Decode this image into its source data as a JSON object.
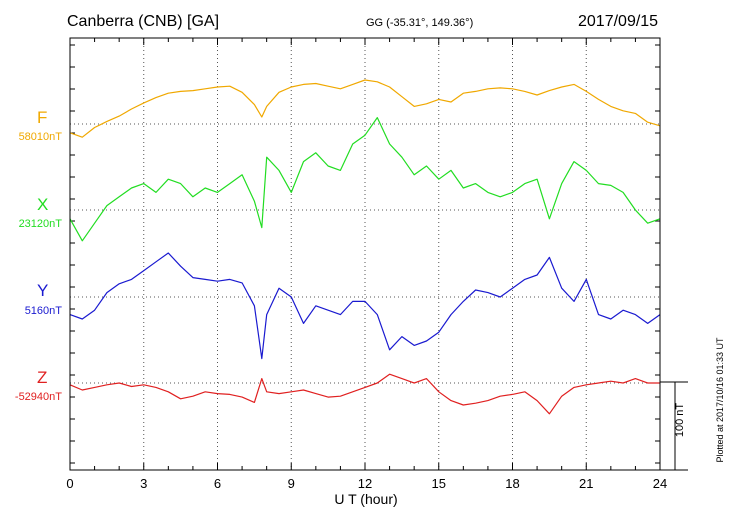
{
  "header": {
    "title": "Canberra (CNB)  [GA]",
    "coords": "GG (-35.31°, 149.36°)",
    "date": "2017/09/15"
  },
  "footer": {
    "plotted": "Plotted at 2017/10/16 01:33 UT",
    "scale_label": "100 nT"
  },
  "chart_data": {
    "type": "line",
    "xlabel": "U T (hour)",
    "xlim": [
      0,
      24
    ],
    "xticks": [
      "0",
      "3",
      "6",
      "9",
      "12",
      "15",
      "18",
      "21",
      "24"
    ],
    "grid": true,
    "scale_bar_nT": 100,
    "series": [
      {
        "name": "F",
        "baseline_label": "58010nT",
        "baseline": 58010,
        "color": "#f0a800",
        "x": [
          0,
          0.5,
          1,
          1.5,
          2,
          2.5,
          3,
          3.5,
          4,
          4.5,
          5,
          5.5,
          6,
          6.5,
          7,
          7.5,
          7.8,
          8,
          8.5,
          9,
          9.5,
          10,
          10.5,
          11,
          11.5,
          12,
          12.5,
          13,
          13.5,
          14,
          14.5,
          15,
          15.5,
          16,
          16.5,
          17,
          17.5,
          18,
          18.5,
          19,
          19.5,
          20,
          20.5,
          21,
          21.5,
          22,
          22.5,
          23,
          23.5,
          24
        ],
        "values": [
          58000,
          57995,
          58006,
          58013,
          58019,
          58027,
          58034,
          58040,
          58045,
          58047,
          58048,
          58050,
          58052,
          58053,
          58046,
          58032,
          58018,
          58030,
          58046,
          58052,
          58055,
          58056,
          58053,
          58050,
          58055,
          58060,
          58058,
          58052,
          58041,
          58030,
          58033,
          58038,
          58035,
          58045,
          58047,
          58050,
          58051,
          58050,
          58047,
          58043,
          58048,
          58052,
          58055,
          58047,
          58038,
          58030,
          58025,
          58022,
          58012,
          58008
        ]
      },
      {
        "name": "X",
        "baseline_label": "23120nT",
        "baseline": 23120,
        "color": "#22dd22",
        "x": [
          0,
          0.5,
          1,
          1.5,
          2,
          2.5,
          3,
          3.5,
          4,
          4.5,
          5,
          5.5,
          6,
          6.5,
          7,
          7.5,
          7.8,
          8,
          8.5,
          9,
          9.5,
          10,
          10.5,
          11,
          11.5,
          12,
          12.5,
          13,
          13.5,
          14,
          14.5,
          15,
          15.5,
          16,
          16.5,
          17,
          17.5,
          18,
          18.5,
          19,
          19.5,
          20,
          20.5,
          21,
          21.5,
          22,
          22.5,
          23,
          23.5,
          24
        ],
        "values": [
          23110,
          23085,
          23105,
          23125,
          23135,
          23145,
          23150,
          23140,
          23155,
          23150,
          23135,
          23145,
          23140,
          23150,
          23160,
          23130,
          23100,
          23180,
          23165,
          23140,
          23175,
          23185,
          23170,
          23165,
          23195,
          23205,
          23225,
          23195,
          23180,
          23160,
          23170,
          23155,
          23165,
          23145,
          23150,
          23140,
          23135,
          23140,
          23150,
          23155,
          23110,
          23150,
          23175,
          23165,
          23150,
          23148,
          23140,
          23120,
          23105,
          23110
        ]
      },
      {
        "name": "Y",
        "baseline_label": "5160nT",
        "baseline": 5160,
        "color": "#1a1ad0",
        "x": [
          0,
          0.5,
          1,
          1.5,
          2,
          2.5,
          3,
          3.5,
          4,
          4.5,
          5,
          5.5,
          6,
          6.5,
          7,
          7.5,
          7.8,
          8,
          8.5,
          9,
          9.5,
          10,
          10.5,
          11,
          11.5,
          12,
          12.5,
          13,
          13.5,
          14,
          14.5,
          15,
          15.5,
          16,
          16.5,
          17,
          17.5,
          18,
          18.5,
          19,
          19.5,
          20,
          20.5,
          21,
          21.5,
          22,
          22.5,
          23,
          23.5,
          24
        ],
        "values": [
          5140,
          5135,
          5145,
          5165,
          5175,
          5180,
          5190,
          5200,
          5210,
          5195,
          5182,
          5180,
          5178,
          5180,
          5176,
          5150,
          5090,
          5140,
          5170,
          5160,
          5130,
          5150,
          5145,
          5140,
          5155,
          5155,
          5140,
          5100,
          5115,
          5105,
          5110,
          5120,
          5140,
          5155,
          5168,
          5165,
          5160,
          5170,
          5180,
          5185,
          5205,
          5170,
          5155,
          5180,
          5140,
          5135,
          5145,
          5140,
          5130,
          5140
        ]
      },
      {
        "name": "Z",
        "baseline_label": "-52940nT",
        "baseline": -52940,
        "color": "#e02020",
        "x": [
          0,
          0.5,
          1,
          1.5,
          2,
          2.5,
          3,
          3.5,
          4,
          4.5,
          5,
          5.5,
          6,
          6.5,
          7,
          7.5,
          7.8,
          8,
          8.5,
          9,
          9.5,
          10,
          10.5,
          11,
          11.5,
          12,
          12.5,
          13,
          13.5,
          14,
          14.5,
          15,
          15.5,
          16,
          16.5,
          17,
          17.5,
          18,
          18.5,
          19,
          19.5,
          20,
          20.5,
          21,
          21.5,
          22,
          22.5,
          23,
          23.5,
          24
        ],
        "values": [
          -52942,
          -52948,
          -52945,
          -52942,
          -52940,
          -52944,
          -52942,
          -52945,
          -52950,
          -52958,
          -52955,
          -52950,
          -52952,
          -52953,
          -52956,
          -52962,
          -52935,
          -52950,
          -52952,
          -52950,
          -52948,
          -52952,
          -52956,
          -52955,
          -52950,
          -52945,
          -52940,
          -52930,
          -52935,
          -52940,
          -52935,
          -52950,
          -52960,
          -52965,
          -52963,
          -52960,
          -52955,
          -52953,
          -52950,
          -52960,
          -52975,
          -52955,
          -52945,
          -52942,
          -52940,
          -52938,
          -52940,
          -52935,
          -52940,
          -52940
        ]
      }
    ]
  }
}
